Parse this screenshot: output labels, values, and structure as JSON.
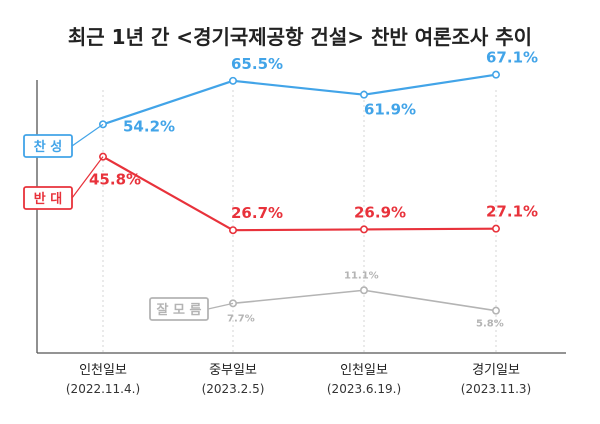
{
  "chart_data": {
    "type": "line",
    "title": "최근 1년 간 <경기국제공항 건설> 찬반 여론조사 추이",
    "categories": [
      {
        "name": "인천일보",
        "date": "(2022.11.4.)"
      },
      {
        "name": "중부일보",
        "date": "(2023.2.5)"
      },
      {
        "name": "인천일보",
        "date": "(2023.6.19.)"
      },
      {
        "name": "경기일보",
        "date": "(2023.11.3)"
      }
    ],
    "series": [
      {
        "name": "찬 성",
        "color": "#42a4e8",
        "values": [
          54.2,
          65.5,
          61.9,
          67.1
        ],
        "labels": [
          "54.2%",
          "65.5%",
          "61.9%",
          "67.1%"
        ]
      },
      {
        "name": "반 대",
        "color": "#e8323b",
        "values": [
          45.8,
          26.7,
          26.9,
          27.1
        ],
        "labels": [
          "45.8%",
          "26.7%",
          "26.9%",
          "27.1%"
        ]
      },
      {
        "name": "잘 모 름",
        "color": "#b4b4b4",
        "values": [
          null,
          7.7,
          11.1,
          5.8
        ],
        "labels": [
          null,
          "7.7%",
          "11.1%",
          "5.8%"
        ]
      }
    ],
    "grid": "vertical dotted",
    "ylim": [
      0,
      75
    ]
  }
}
